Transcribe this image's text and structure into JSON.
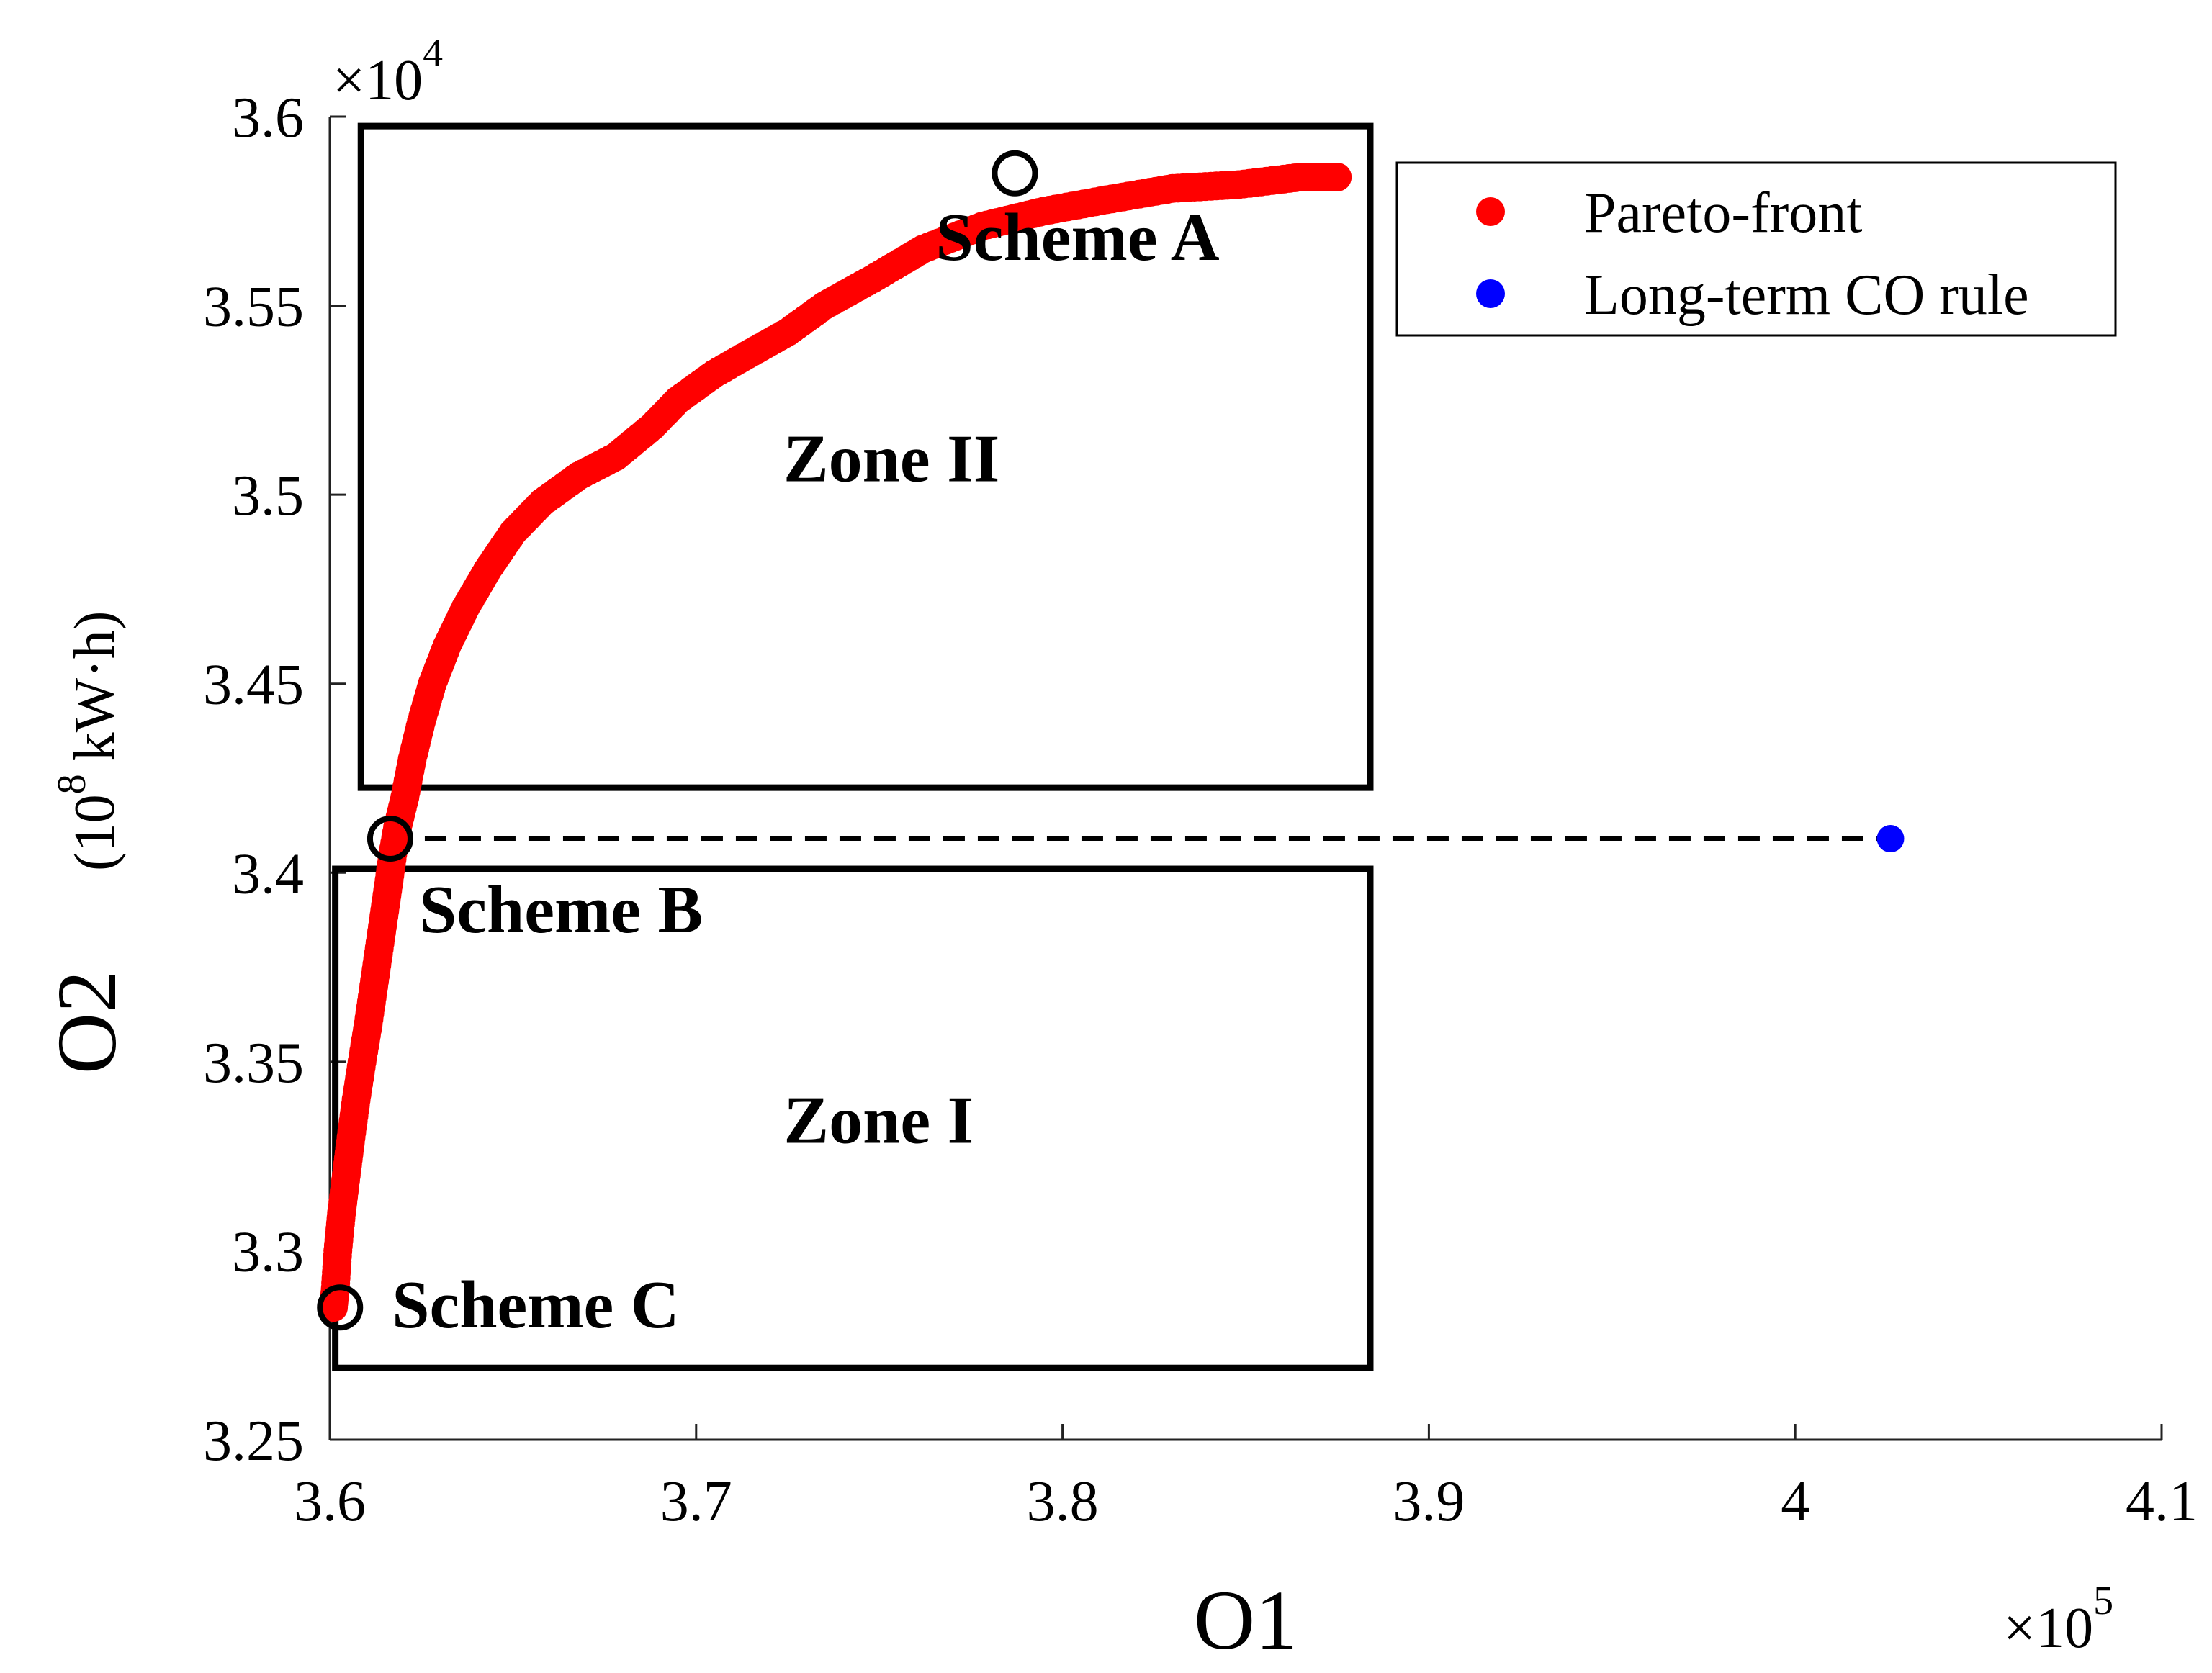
{
  "chart_data": {
    "type": "scatter",
    "title": "",
    "xlabel": "O1",
    "ylabel": "O2",
    "ylabel_unit": "(10",
    "ylabel_unit_power": "8",
    "ylabel_unit_tail": "kW·h)",
    "x_multiplier": "×10",
    "x_multiplier_power": "5",
    "y_multiplier": "×10",
    "y_multiplier_power": "4",
    "xlim": [
      3.6,
      4.1
    ],
    "ylim": [
      3.25,
      3.6
    ],
    "xticks": [
      3.6,
      3.7,
      3.8,
      3.9,
      4.0,
      4.1
    ],
    "xtick_labels": [
      "3.6",
      "3.7",
      "3.8",
      "3.9",
      "4",
      "4.1"
    ],
    "yticks": [
      3.25,
      3.3,
      3.35,
      3.4,
      3.45,
      3.5,
      3.55,
      3.6
    ],
    "ytick_labels": [
      "3.25",
      "3.3",
      "3.35",
      "3.4",
      "3.45",
      "3.5",
      "3.55",
      "3.6"
    ],
    "legend": [
      {
        "label": "Pareto-front",
        "color": "#ff0000"
      },
      {
        "label": "Long-term CO rule",
        "color": "#0000ff"
      }
    ],
    "legend_position": "top-right",
    "series": [
      {
        "name": "Pareto-front",
        "color": "#ff0000",
        "points": [
          [
            3.601,
            3.285
          ],
          [
            3.6015,
            3.29
          ],
          [
            3.6022,
            3.3
          ],
          [
            3.6032,
            3.31
          ],
          [
            3.6045,
            3.32
          ],
          [
            3.6058,
            3.33
          ],
          [
            3.6072,
            3.34
          ],
          [
            3.6088,
            3.35
          ],
          [
            3.6105,
            3.36
          ],
          [
            3.612,
            3.37
          ],
          [
            3.6135,
            3.38
          ],
          [
            3.615,
            3.39
          ],
          [
            3.6162,
            3.398
          ],
          [
            3.6172,
            3.405
          ],
          [
            3.6185,
            3.412
          ],
          [
            3.6205,
            3.42
          ],
          [
            3.6225,
            3.43
          ],
          [
            3.625,
            3.44
          ],
          [
            3.628,
            3.45
          ],
          [
            3.632,
            3.46
          ],
          [
            3.637,
            3.47
          ],
          [
            3.643,
            3.48
          ],
          [
            3.65,
            3.49
          ],
          [
            3.658,
            3.498
          ],
          [
            3.668,
            3.505
          ],
          [
            3.678,
            3.51
          ],
          [
            3.688,
            3.518
          ],
          [
            3.695,
            3.525
          ],
          [
            3.705,
            3.532
          ],
          [
            3.714,
            3.537
          ],
          [
            3.725,
            3.543
          ],
          [
            3.735,
            3.55
          ],
          [
            3.748,
            3.557
          ],
          [
            3.762,
            3.565
          ],
          [
            3.778,
            3.571
          ],
          [
            3.795,
            3.575
          ],
          [
            3.812,
            3.578
          ],
          [
            3.83,
            3.581
          ],
          [
            3.848,
            3.582
          ],
          [
            3.865,
            3.584
          ],
          [
            3.875,
            3.584
          ]
        ]
      },
      {
        "name": "Long-term CO rule",
        "color": "#0000ff",
        "points": [
          [
            4.026,
            3.409
          ]
        ]
      }
    ],
    "reference_line": {
      "style": "dashed",
      "from": [
        3.6165,
        3.409
      ],
      "to": [
        4.026,
        3.409
      ]
    },
    "markers": [
      {
        "label": "Scheme A",
        "point": [
          3.787,
          3.585
        ]
      },
      {
        "label": "Scheme B",
        "point": [
          3.6165,
          3.409
        ]
      },
      {
        "label": "Scheme C",
        "point": [
          3.6028,
          3.285
        ]
      }
    ],
    "zones": [
      {
        "label": "Zone II",
        "x": [
          3.6085,
          3.884
        ],
        "y": [
          3.4225,
          3.5975
        ]
      },
      {
        "label": "Zone I",
        "x": [
          3.6015,
          3.884
        ],
        "y": [
          3.269,
          3.401
        ]
      }
    ]
  }
}
